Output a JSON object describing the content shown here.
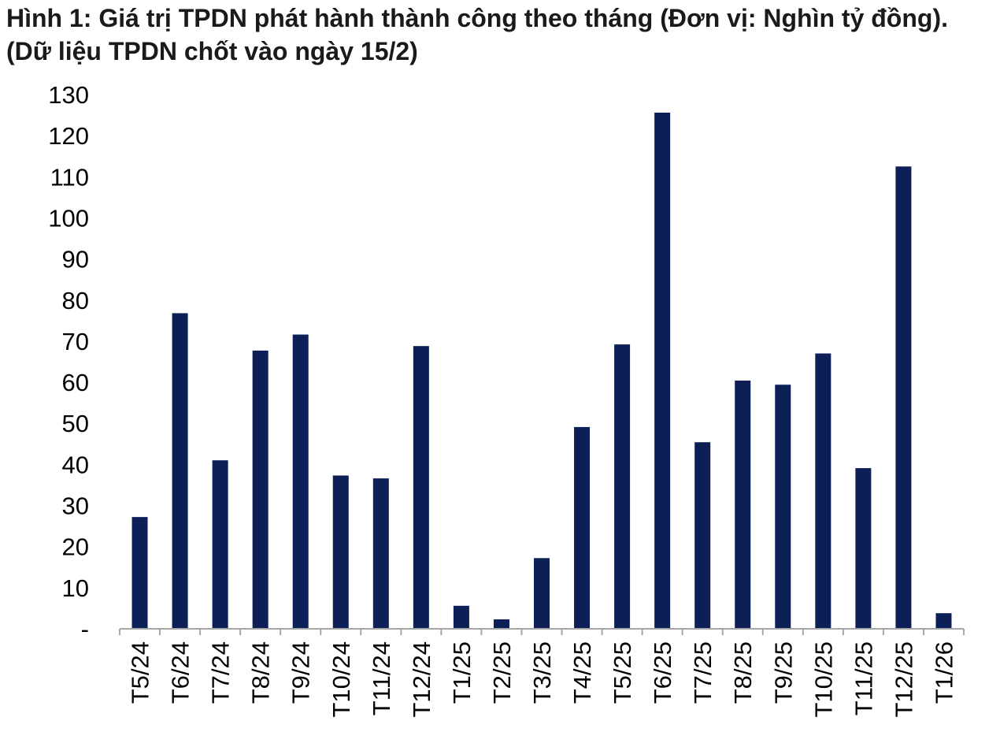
{
  "chart_data": {
    "type": "bar",
    "title": "Hình 1: Giá trị TPDN phát hành thành công theo tháng (Đơn vị: Nghìn tỷ đồng). (Dữ liệu TPDN chốt vào ngày 15/2)",
    "xlabel": "",
    "ylabel": "",
    "categories": [
      "T5/24",
      "T6/24",
      "T7/24",
      "T8/24",
      "T9/24",
      "T10/24",
      "T11/24",
      "T12/24",
      "T1/25",
      "T2/25",
      "T3/25",
      "T4/25",
      "T5/25",
      "T6/25",
      "T7/25",
      "T8/25",
      "T9/25",
      "T10/25",
      "T11/25",
      "T12/25",
      "T1/26"
    ],
    "values": [
      27.2,
      76.8,
      41.0,
      67.7,
      71.6,
      37.3,
      36.6,
      68.8,
      5.6,
      2.3,
      17.2,
      49.1,
      69.2,
      125.6,
      45.4,
      60.4,
      59.4,
      67.0,
      39.1,
      112.5,
      3.8
    ],
    "ylim": [
      0,
      130
    ],
    "yticks": [
      "-",
      "10",
      "20",
      "30",
      "40",
      "50",
      "60",
      "70",
      "80",
      "90",
      "100",
      "110",
      "120",
      "130"
    ],
    "grid": false,
    "legend": "none",
    "colors": {
      "bar": "#0c1f57",
      "axis": "#a6a6a6"
    }
  }
}
